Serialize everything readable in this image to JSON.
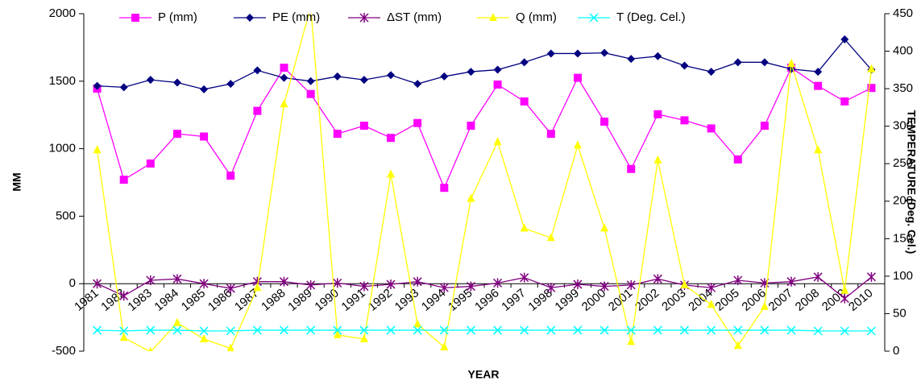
{
  "chart_data": {
    "type": "line",
    "x_label": "YEAR",
    "y_label": "MM",
    "y2_label": "TEMPERATURE (Deg. Cel.)",
    "categories": [
      "1981",
      "1982",
      "1983",
      "1984",
      "1985",
      "1986",
      "1987",
      "1988",
      "1989",
      "1990",
      "1991",
      "1992",
      "1993",
      "1994",
      "1995",
      "1996",
      "1997",
      "1998",
      "1999",
      "2000",
      "2001",
      "2002",
      "2003",
      "2004",
      "2005",
      "2006",
      "2007",
      "2008",
      "2009",
      "2010"
    ],
    "ylim": [
      -500,
      2000
    ],
    "yticks": [
      -500,
      0,
      500,
      1000,
      1500,
      2000
    ],
    "y2lim": [
      0,
      450
    ],
    "y2ticks": [
      0,
      50,
      100,
      150,
      200,
      250,
      300,
      350,
      400,
      450
    ],
    "legend": "top",
    "series": [
      {
        "name": "P (mm)",
        "color": "#ff00ff",
        "marker": "square",
        "values": [
          1445,
          770,
          890,
          1110,
          1090,
          800,
          1280,
          1600,
          1405,
          1110,
          1170,
          1080,
          1190,
          710,
          1170,
          1475,
          1350,
          1110,
          1525,
          1200,
          850,
          1255,
          1210,
          1150,
          920,
          1170,
          1600,
          1465,
          1350,
          1450
        ]
      },
      {
        "name": "PE (mm)",
        "color": "#000080",
        "marker": "diamond",
        "values": [
          1465,
          1455,
          1510,
          1490,
          1440,
          1480,
          1580,
          1525,
          1500,
          1535,
          1510,
          1545,
          1480,
          1535,
          1570,
          1585,
          1640,
          1705,
          1705,
          1710,
          1665,
          1685,
          1615,
          1570,
          1640,
          1640,
          1590,
          1570,
          1810,
          1585
        ]
      },
      {
        "name": "ΔST (mm)",
        "color": "#800080",
        "marker": "star",
        "values": [
          0,
          -90,
          25,
          35,
          0,
          -35,
          15,
          15,
          -10,
          5,
          -20,
          -5,
          15,
          -30,
          -20,
          5,
          45,
          -30,
          -5,
          -20,
          -10,
          35,
          -10,
          -30,
          25,
          5,
          15,
          50,
          -110,
          50
        ]
      },
      {
        "name": "Q (mm)",
        "color": "#ffff00",
        "marker": "triangle",
        "values": [
          990,
          -400,
          -505,
          -290,
          -410,
          -480,
          -30,
          1330,
          2050,
          -380,
          -410,
          810,
          -300,
          -470,
          630,
          1050,
          410,
          340,
          1025,
          410,
          -430,
          915,
          -10,
          -155,
          -460,
          -170,
          1630,
          990,
          -50,
          1590
        ]
      },
      {
        "name": "T (Deg. Cel.)",
        "color": "#00ffff",
        "marker": "x",
        "axis": "y2",
        "values": [
          28,
          27,
          28,
          28,
          27,
          27,
          28,
          28,
          28,
          28,
          28,
          28,
          28,
          28,
          28,
          28,
          28,
          28,
          28,
          28,
          28,
          28,
          28,
          28,
          28,
          28,
          28,
          27,
          27,
          27
        ]
      }
    ]
  }
}
